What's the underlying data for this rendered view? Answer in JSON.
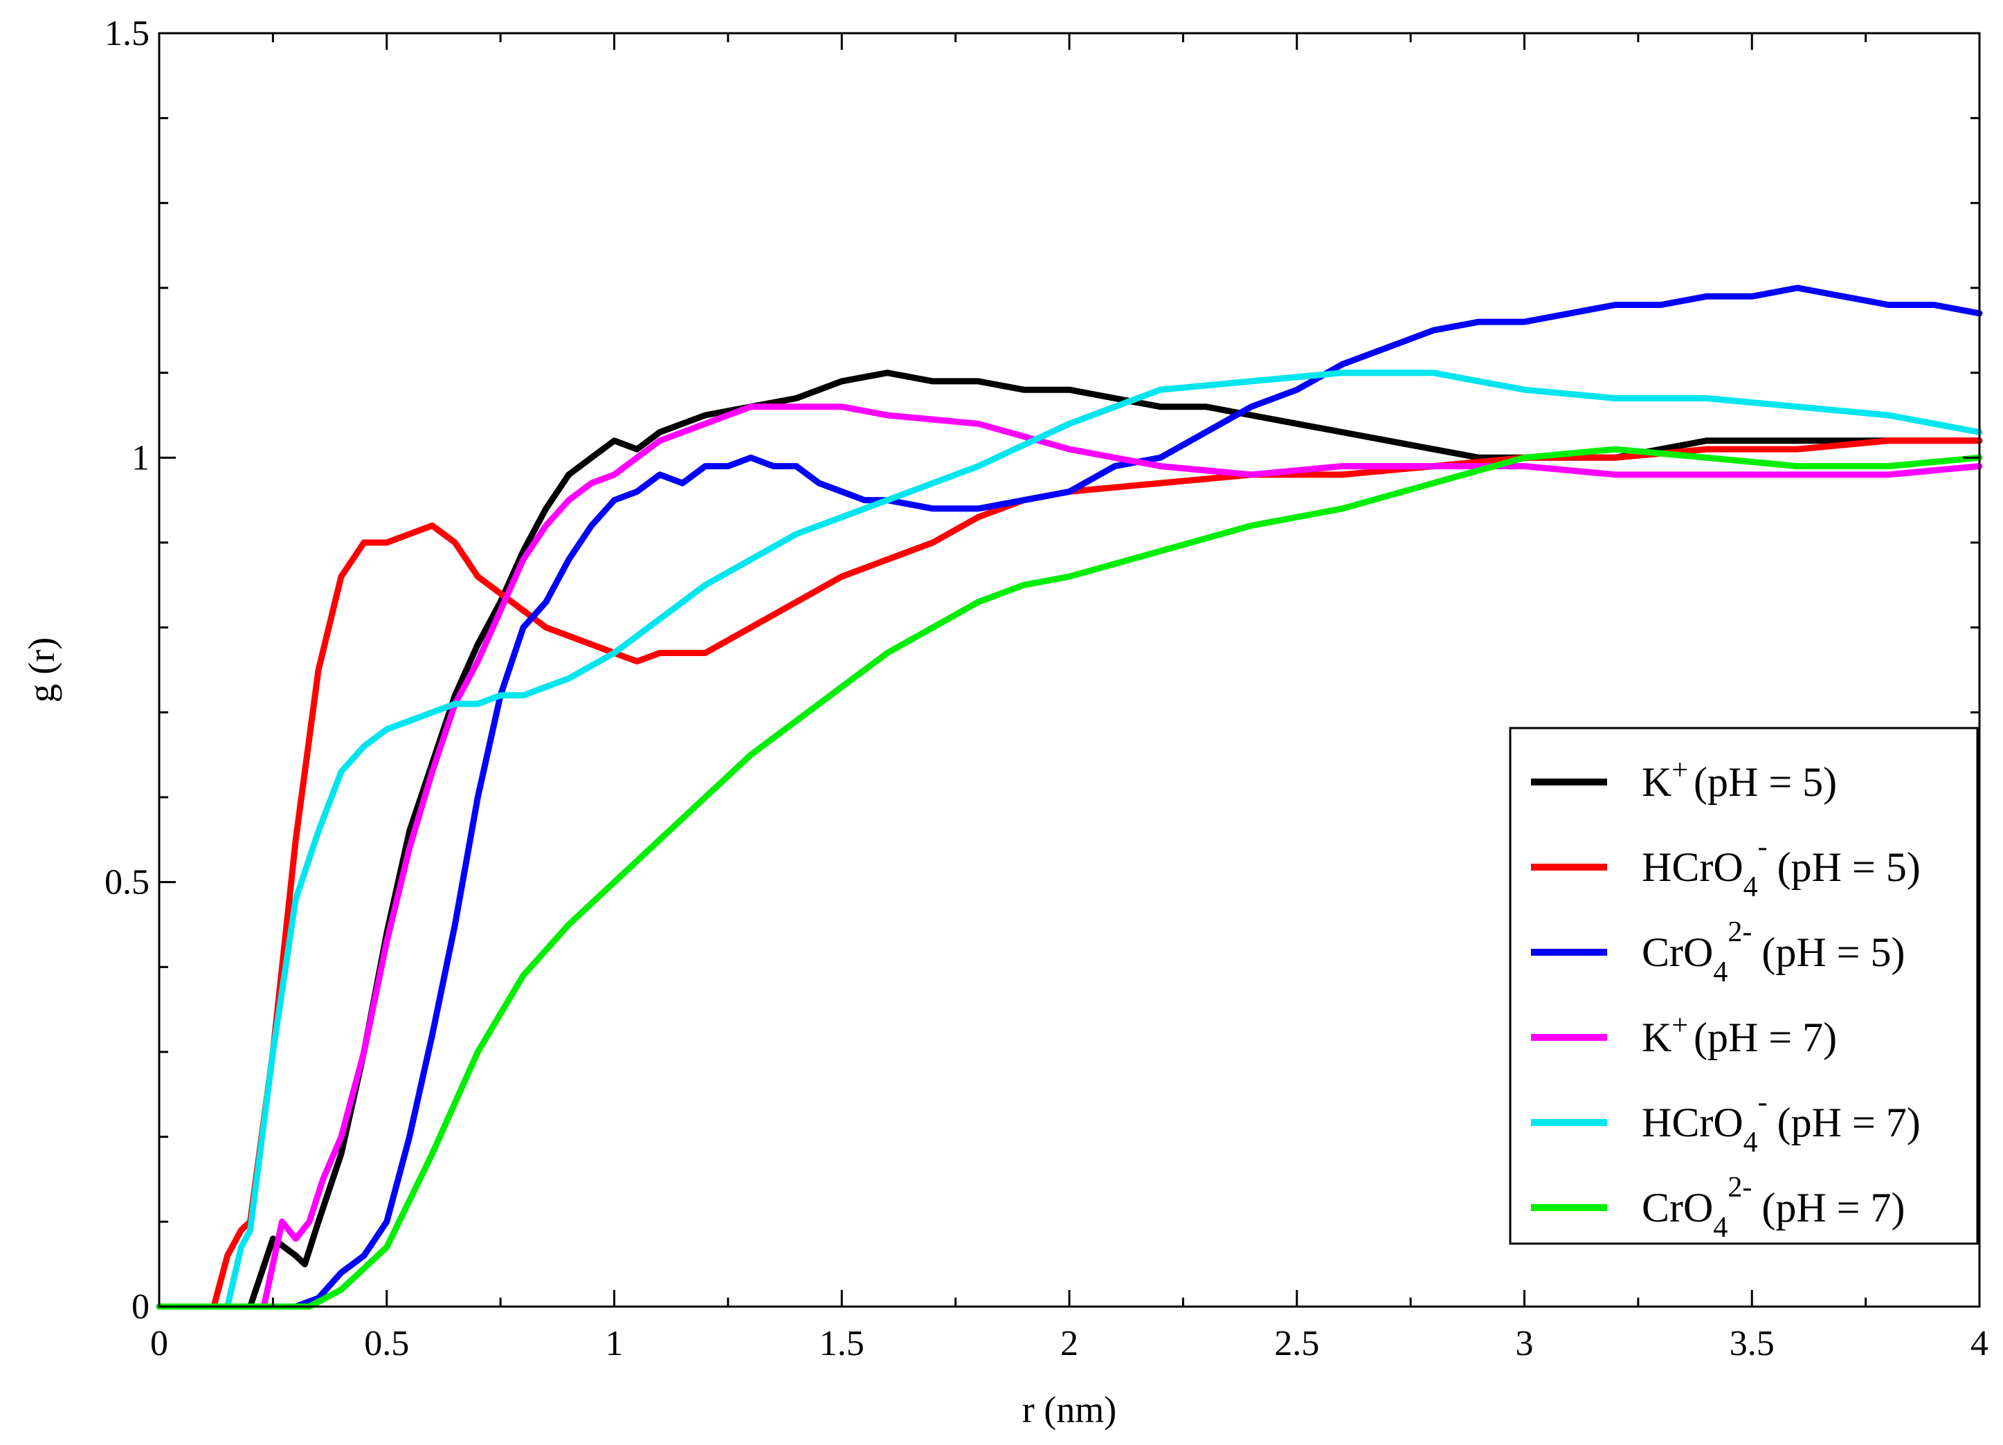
{
  "chart_data": {
    "type": "line",
    "title": "",
    "xlabel": "r (nm)",
    "ylabel": "g (r)",
    "xlim": [
      0,
      4
    ],
    "ylim": [
      0,
      1.5
    ],
    "xticks": [
      0,
      0.5,
      1,
      1.5,
      2,
      2.5,
      3,
      3.5,
      4
    ],
    "xtick_labels": [
      "0",
      "0.5",
      "1",
      "1.5",
      "2",
      "2.5",
      "3",
      "3.5",
      "4"
    ],
    "yticks": [
      0,
      0.5,
      1,
      1.5
    ],
    "ytick_labels": [
      "0",
      "0.5",
      "1",
      "1.5"
    ],
    "grid": false,
    "legend_position": "bottom-right",
    "series": [
      {
        "name": "K+ (pH = 5)",
        "legend": {
          "base": "K",
          "sup": "+",
          "sub": "",
          "suffix": "(pH = 5)"
        },
        "color": "#000000",
        "x": [
          0,
          0.2,
          0.25,
          0.3,
          0.32,
          0.35,
          0.4,
          0.45,
          0.5,
          0.55,
          0.6,
          0.65,
          0.7,
          0.75,
          0.8,
          0.85,
          0.9,
          0.95,
          1.0,
          1.05,
          1.1,
          1.2,
          1.3,
          1.4,
          1.5,
          1.6,
          1.7,
          1.8,
          1.9,
          2.0,
          2.1,
          2.2,
          2.3,
          2.4,
          2.5,
          2.6,
          2.7,
          2.8,
          2.9,
          3.0,
          3.1,
          3.2,
          3.3,
          3.4,
          3.5,
          3.6,
          3.7,
          3.8,
          3.9,
          4.0
        ],
        "y": [
          0,
          0,
          0.08,
          0.06,
          0.05,
          0.1,
          0.18,
          0.3,
          0.44,
          0.56,
          0.64,
          0.72,
          0.78,
          0.83,
          0.89,
          0.94,
          0.98,
          1.0,
          1.02,
          1.01,
          1.03,
          1.05,
          1.06,
          1.07,
          1.09,
          1.1,
          1.09,
          1.09,
          1.08,
          1.08,
          1.07,
          1.06,
          1.06,
          1.05,
          1.04,
          1.03,
          1.02,
          1.01,
          1.0,
          1.0,
          1.0,
          1.0,
          1.01,
          1.02,
          1.02,
          1.02,
          1.02,
          1.02,
          1.02,
          1.02
        ]
      },
      {
        "name": "HCrO4- (pH = 5)",
        "legend": {
          "base": "HCrO",
          "sup": "-",
          "sub": "4",
          "suffix": "(pH = 5)"
        },
        "color": "#ff0000",
        "x": [
          0,
          0.12,
          0.15,
          0.18,
          0.2,
          0.25,
          0.3,
          0.35,
          0.4,
          0.45,
          0.5,
          0.55,
          0.6,
          0.65,
          0.7,
          0.75,
          0.8,
          0.85,
          0.9,
          0.95,
          1.0,
          1.05,
          1.1,
          1.2,
          1.3,
          1.4,
          1.5,
          1.6,
          1.7,
          1.8,
          1.9,
          2.0,
          2.2,
          2.4,
          2.6,
          2.8,
          3.0,
          3.2,
          3.4,
          3.6,
          3.8,
          4.0
        ],
        "y": [
          0,
          0,
          0.06,
          0.09,
          0.1,
          0.3,
          0.55,
          0.75,
          0.86,
          0.9,
          0.9,
          0.91,
          0.92,
          0.9,
          0.86,
          0.84,
          0.82,
          0.8,
          0.79,
          0.78,
          0.77,
          0.76,
          0.77,
          0.77,
          0.8,
          0.83,
          0.86,
          0.88,
          0.9,
          0.93,
          0.95,
          0.96,
          0.97,
          0.98,
          0.98,
          0.99,
          1.0,
          1.0,
          1.01,
          1.01,
          1.02,
          1.02
        ]
      },
      {
        "name": "CrO42- (pH = 5)",
        "legend": {
          "base": "CrO",
          "sup": "2-",
          "sub": "4",
          "suffix": "(pH = 5)"
        },
        "color": "#0000ff",
        "x": [
          0,
          0.3,
          0.35,
          0.4,
          0.45,
          0.5,
          0.55,
          0.6,
          0.65,
          0.7,
          0.75,
          0.8,
          0.85,
          0.9,
          0.95,
          1.0,
          1.05,
          1.1,
          1.15,
          1.2,
          1.25,
          1.3,
          1.35,
          1.4,
          1.45,
          1.5,
          1.55,
          1.6,
          1.7,
          1.75,
          1.8,
          1.9,
          2.0,
          2.1,
          2.2,
          2.3,
          2.4,
          2.5,
          2.6,
          2.7,
          2.8,
          2.9,
          3.0,
          3.1,
          3.2,
          3.3,
          3.4,
          3.5,
          3.6,
          3.7,
          3.8,
          3.9,
          4.0
        ],
        "y": [
          0,
          0,
          0.01,
          0.04,
          0.06,
          0.1,
          0.2,
          0.32,
          0.45,
          0.6,
          0.72,
          0.8,
          0.83,
          0.88,
          0.92,
          0.95,
          0.96,
          0.98,
          0.97,
          0.99,
          0.99,
          1.0,
          0.99,
          0.99,
          0.97,
          0.96,
          0.95,
          0.95,
          0.94,
          0.94,
          0.94,
          0.95,
          0.96,
          0.99,
          1.0,
          1.03,
          1.06,
          1.08,
          1.11,
          1.13,
          1.15,
          1.16,
          1.16,
          1.17,
          1.18,
          1.18,
          1.19,
          1.19,
          1.2,
          1.19,
          1.18,
          1.18,
          1.17
        ]
      },
      {
        "name": "K+(pH = 7)",
        "legend": {
          "base": "K",
          "sup": "+",
          "sub": "",
          "suffix": "(pH = 7)"
        },
        "color": "#ff00ff",
        "x": [
          0,
          0.23,
          0.27,
          0.3,
          0.33,
          0.36,
          0.4,
          0.45,
          0.5,
          0.55,
          0.6,
          0.65,
          0.7,
          0.75,
          0.8,
          0.85,
          0.9,
          0.95,
          1.0,
          1.05,
          1.1,
          1.2,
          1.3,
          1.4,
          1.5,
          1.6,
          1.8,
          2.0,
          2.2,
          2.4,
          2.6,
          2.8,
          3.0,
          3.2,
          3.4,
          3.6,
          3.8,
          4.0
        ],
        "y": [
          0,
          0,
          0.1,
          0.08,
          0.1,
          0.15,
          0.2,
          0.3,
          0.43,
          0.54,
          0.63,
          0.71,
          0.76,
          0.82,
          0.88,
          0.92,
          0.95,
          0.97,
          0.98,
          1.0,
          1.02,
          1.04,
          1.06,
          1.06,
          1.06,
          1.05,
          1.04,
          1.01,
          0.99,
          0.98,
          0.99,
          0.99,
          0.99,
          0.98,
          0.98,
          0.98,
          0.98,
          0.99
        ]
      },
      {
        "name": "HCrO4- (pH = 7)",
        "legend": {
          "base": "HCrO",
          "sup": "-",
          "sub": "4",
          "suffix": "(pH = 7)"
        },
        "color": "#00e5ee",
        "x": [
          0,
          0.15,
          0.18,
          0.2,
          0.25,
          0.3,
          0.35,
          0.4,
          0.45,
          0.5,
          0.55,
          0.6,
          0.65,
          0.7,
          0.75,
          0.8,
          0.85,
          0.9,
          1.0,
          1.1,
          1.2,
          1.3,
          1.4,
          1.5,
          1.6,
          1.8,
          2.0,
          2.2,
          2.4,
          2.6,
          2.7,
          2.8,
          3.0,
          3.2,
          3.4,
          3.6,
          3.8,
          4.0
        ],
        "y": [
          0,
          0,
          0.07,
          0.09,
          0.3,
          0.48,
          0.56,
          0.63,
          0.66,
          0.68,
          0.69,
          0.7,
          0.71,
          0.71,
          0.72,
          0.72,
          0.73,
          0.74,
          0.77,
          0.81,
          0.85,
          0.88,
          0.91,
          0.93,
          0.95,
          0.99,
          1.04,
          1.08,
          1.09,
          1.1,
          1.1,
          1.1,
          1.08,
          1.07,
          1.07,
          1.06,
          1.05,
          1.03
        ]
      },
      {
        "name": "CrO42- (pH = 7)",
        "legend": {
          "base": "CrO",
          "sup": "2-",
          "sub": "4",
          "suffix": "(pH = 7)"
        },
        "color": "#00ee00",
        "x": [
          0,
          0.33,
          0.4,
          0.5,
          0.6,
          0.7,
          0.8,
          0.9,
          1.0,
          1.1,
          1.2,
          1.3,
          1.4,
          1.5,
          1.6,
          1.7,
          1.8,
          1.9,
          2.0,
          2.2,
          2.4,
          2.6,
          2.8,
          3.0,
          3.2,
          3.4,
          3.6,
          3.8,
          4.0
        ],
        "y": [
          0,
          0,
          0.02,
          0.07,
          0.18,
          0.3,
          0.39,
          0.45,
          0.5,
          0.55,
          0.6,
          0.65,
          0.69,
          0.73,
          0.77,
          0.8,
          0.83,
          0.85,
          0.86,
          0.89,
          0.92,
          0.94,
          0.97,
          1.0,
          1.01,
          1.0,
          0.99,
          0.99,
          1.0
        ]
      }
    ]
  }
}
